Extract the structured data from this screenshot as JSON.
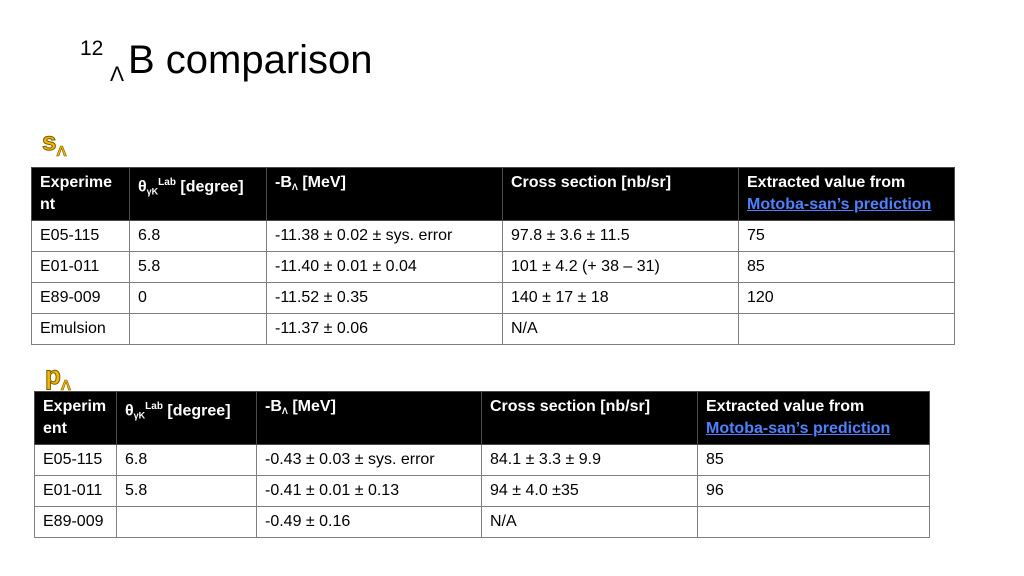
{
  "title": {
    "sup": "12",
    "sub": "Λ",
    "main": "B comparison"
  },
  "states": {
    "s": {
      "letter": "s",
      "sub": "Λ"
    },
    "p": {
      "letter": "p",
      "sub": "Λ"
    }
  },
  "header": {
    "experiment_s": "Experime nt",
    "experiment_p": "Experim ent",
    "theta": "θ",
    "theta_sub": "γK",
    "theta_sup": "Lab",
    "theta_unit": " [degree]",
    "binding_prefix": "-B",
    "binding_sub": "Λ",
    "binding_unit": " [MeV]",
    "cross_section": "Cross section [nb/sr]",
    "extracted_label": "Extracted value from",
    "extracted_link": "Motoba-san’s prediction"
  },
  "table_s": {
    "rows": [
      {
        "experiment": "E05-115",
        "theta": "6.8",
        "binding": "-11.38 ± 0.02 ± sys. error",
        "cross_section": "97.8 ± 3.6 ± 11.5",
        "extracted": "75"
      },
      {
        "experiment": "E01-011",
        "theta": "5.8",
        "binding": "-11.40 ± 0.01 ± 0.04",
        "cross_section": "101 ± 4.2 (+ 38 – 31)",
        "extracted": "85"
      },
      {
        "experiment": "E89-009",
        "theta": "0",
        "binding": "-11.52 ± 0.35",
        "cross_section": "140 ± 17 ± 18",
        "extracted": "120"
      },
      {
        "experiment": "Emulsion",
        "theta": "",
        "binding": "-11.37 ± 0.06",
        "cross_section": "N/A",
        "extracted": ""
      }
    ]
  },
  "table_p": {
    "rows": [
      {
        "experiment": "E05-115",
        "theta": "6.8",
        "binding": "-0.43 ± 0.03 ± sys. error",
        "cross_section": "84.1 ± 3.3 ± 9.9",
        "extracted": "85"
      },
      {
        "experiment": "E01-011",
        "theta": "5.8",
        "binding": "-0.41 ± 0.01 ± 0.13",
        "cross_section": "94 ± 4.0 ±35",
        "extracted": "96"
      },
      {
        "experiment": "E89-009",
        "theta": "",
        "binding": "-0.49 ± 0.16",
        "cross_section": "N/A",
        "extracted": ""
      }
    ]
  }
}
